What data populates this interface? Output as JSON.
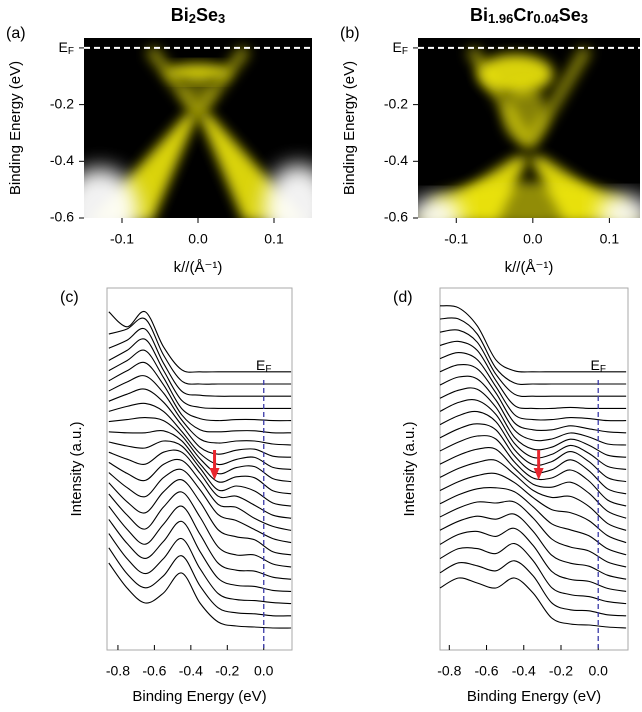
{
  "chart_data": [
    {
      "type": "heatmap",
      "panel": "(a)",
      "title": "Bi2Se3",
      "xlabel": "k//(Å⁻¹)",
      "ylabel": "Binding Energy (eV)",
      "xlim": [
        -0.15,
        0.15
      ],
      "xticks": [
        -0.1,
        {
          "value": 0,
          "label": "0.0"
        },
        0.1
      ],
      "ylim": [
        -0.6,
        0.035
      ],
      "yticks": [
        {
          "value": 0,
          "label": "EF"
        },
        -0.2,
        -0.4,
        -0.6
      ],
      "colors": [
        "#000000",
        "#f2ea10",
        "#ffffff"
      ]
    },
    {
      "type": "heatmap",
      "panel": "(b)",
      "title": "Bi1.96Cr0.04Se3",
      "xlabel": "k//(Å⁻¹)",
      "ylabel": "Binding Energy (eV)",
      "xlim": [
        -0.15,
        0.14
      ],
      "xticks": [
        -0.1,
        {
          "value": 0,
          "label": "0.0"
        },
        0.1
      ],
      "ylim": [
        -0.6,
        0.035
      ],
      "yticks": [
        {
          "value": 0,
          "label": "EF"
        },
        -0.2,
        -0.4,
        -0.6
      ],
      "colors": [
        "#000000",
        "#f2ea10",
        "#ffffff"
      ]
    },
    {
      "type": "waterfall",
      "panel": "(c)",
      "xlabel": "Binding Energy (eV)",
      "ylabel": "Intensity (a.u.)",
      "xlim": [
        -0.86,
        0.155
      ],
      "xticks": [
        -0.8,
        -0.6,
        -0.4,
        -0.2,
        {
          "value": 0,
          "label": "0.0"
        }
      ],
      "annotations": [
        {
          "label": "EF",
          "x": 0
        }
      ],
      "arrow": {
        "x": -0.27,
        "color": "#e8262e"
      },
      "color": "#000000",
      "x": [
        -0.85,
        -0.75,
        -0.65,
        -0.55,
        -0.45,
        -0.35,
        -0.25,
        -0.15,
        -0.05,
        0.05,
        0.15
      ],
      "series": [
        {
          "values": [
            6.5,
            4.0,
            2.5,
            3.5,
            5.5,
            2.5,
            0.6,
            0.2,
            0.1,
            0,
            0
          ]
        },
        {
          "values": [
            6.8,
            4.2,
            2.8,
            4.0,
            6.0,
            3.0,
            0.8,
            0.3,
            0.2,
            0,
            0
          ]
        },
        {
          "values": [
            7.0,
            4.5,
            3.0,
            4.5,
            6.5,
            3.5,
            1.0,
            0.4,
            0.3,
            0.1,
            0
          ]
        },
        {
          "values": [
            7.2,
            4.8,
            3.3,
            5.0,
            7.0,
            4.0,
            1.3,
            0.6,
            0.5,
            0.1,
            0
          ]
        },
        {
          "values": [
            7.3,
            5.0,
            3.5,
            5.5,
            7.3,
            4.5,
            1.6,
            0.9,
            0.8,
            0.2,
            0
          ]
        },
        {
          "values": [
            7.3,
            5.2,
            3.8,
            6.0,
            7.5,
            5.0,
            2.0,
            1.2,
            1.2,
            0.3,
            0
          ]
        },
        {
          "values": [
            7.2,
            5.3,
            4.2,
            6.3,
            7.5,
            5.3,
            2.5,
            1.8,
            1.5,
            0.3,
            0
          ]
        },
        {
          "values": [
            7.0,
            5.5,
            4.6,
            6.5,
            7.3,
            5.3,
            2.8,
            2.2,
            1.3,
            0.4,
            0
          ]
        },
        {
          "values": [
            6.8,
            5.7,
            5.0,
            6.6,
            7.0,
            5.0,
            2.6,
            2.3,
            1.2,
            0.4,
            0
          ]
        },
        {
          "values": [
            6.6,
            5.9,
            5.4,
            6.6,
            6.6,
            4.5,
            2.2,
            2.2,
            1.3,
            0.3,
            0
          ]
        },
        {
          "values": [
            6.4,
            6.0,
            5.8,
            6.5,
            6.0,
            3.8,
            1.6,
            2.0,
            1.5,
            0.3,
            0
          ]
        },
        {
          "values": [
            6.2,
            6.1,
            6.1,
            6.3,
            5.3,
            3.0,
            1.2,
            1.7,
            1.6,
            0.3,
            0
          ]
        },
        {
          "values": [
            6.0,
            6.2,
            6.4,
            6.1,
            4.6,
            2.3,
            0.8,
            1.4,
            1.5,
            0.3,
            0
          ]
        },
        {
          "values": [
            5.8,
            6.3,
            6.6,
            5.8,
            3.8,
            1.6,
            0.5,
            1.0,
            1.2,
            0.2,
            0
          ]
        },
        {
          "values": [
            5.6,
            6.3,
            6.8,
            5.5,
            3.2,
            1.0,
            0.3,
            0.7,
            0.8,
            0.1,
            0
          ]
        },
        {
          "values": [
            5.4,
            6.3,
            6.9,
            5.2,
            2.5,
            0.6,
            0.2,
            0.4,
            0.4,
            0.1,
            0
          ]
        },
        {
          "values": [
            5.2,
            6.2,
            7.0,
            4.8,
            1.8,
            0.3,
            0.1,
            0.2,
            0.2,
            0,
            0
          ]
        },
        {
          "values": [
            5.0,
            6.0,
            7.0,
            4.3,
            1.2,
            0.2,
            0,
            0.1,
            0.1,
            0,
            0
          ]
        },
        {
          "values": [
            4.8,
            5.8,
            6.9,
            3.8,
            0.8,
            0.1,
            0,
            0,
            0,
            0,
            0
          ]
        },
        {
          "values": [
            4.8,
            5.6,
            6.7,
            3.3,
            0.5,
            0.1,
            0,
            0,
            0,
            0,
            0
          ]
        },
        {
          "values": [
            5.0,
            5.5,
            6.5,
            2.9,
            0.3,
            0,
            0,
            0,
            0,
            0,
            0
          ]
        },
        {
          "values": [
            6.0,
            4.5,
            6.0,
            2.5,
            0.2,
            0,
            0,
            0,
            0,
            0,
            0
          ]
        }
      ]
    },
    {
      "type": "waterfall",
      "panel": "(d)",
      "xlabel": "Binding Energy (eV)",
      "ylabel": "Intensity (a.u.)",
      "xlim": [
        -0.85,
        0.16
      ],
      "xticks": [
        -0.8,
        -0.6,
        -0.4,
        -0.2,
        {
          "value": 0,
          "label": "0.0"
        }
      ],
      "annotations": [
        {
          "label": "EF",
          "x": 0
        }
      ],
      "arrow": {
        "x": -0.32,
        "color": "#e8262e"
      },
      "color": "#000000",
      "x": [
        -0.85,
        -0.75,
        -0.65,
        -0.55,
        -0.45,
        -0.35,
        -0.25,
        -0.15,
        -0.05,
        0.05,
        0.15
      ],
      "series": [
        {
          "values": [
            4.0,
            5.0,
            4.5,
            4.0,
            5.0,
            3.5,
            1.0,
            0.4,
            0.3,
            0.1,
            0
          ]
        },
        {
          "values": [
            4.3,
            5.3,
            5.0,
            4.5,
            5.5,
            4.0,
            1.3,
            0.6,
            0.5,
            0.1,
            0
          ]
        },
        {
          "values": [
            4.5,
            5.5,
            5.5,
            5.0,
            6.0,
            4.3,
            1.6,
            0.9,
            0.7,
            0.2,
            0
          ]
        },
        {
          "values": [
            4.7,
            5.7,
            6.0,
            5.5,
            6.3,
            4.6,
            2.0,
            1.2,
            1.0,
            0.3,
            0
          ]
        },
        {
          "values": [
            4.9,
            5.8,
            6.3,
            6.0,
            6.5,
            4.8,
            2.4,
            1.6,
            1.3,
            0.4,
            0
          ]
        },
        {
          "values": [
            5.0,
            5.9,
            6.5,
            6.4,
            6.5,
            4.9,
            2.8,
            2.0,
            1.6,
            0.5,
            0
          ]
        },
        {
          "values": [
            5.1,
            6.0,
            6.6,
            6.7,
            6.3,
            4.8,
            3.1,
            2.5,
            1.9,
            0.6,
            0
          ]
        },
        {
          "values": [
            5.2,
            6.1,
            6.7,
            6.9,
            6.0,
            4.5,
            3.3,
            3.0,
            2.2,
            0.7,
            0
          ]
        },
        {
          "values": [
            5.3,
            6.2,
            6.8,
            7.0,
            5.6,
            4.0,
            3.3,
            3.4,
            2.4,
            0.7,
            0
          ]
        },
        {
          "values": [
            5.4,
            6.3,
            6.9,
            6.9,
            5.0,
            3.4,
            3.1,
            3.6,
            2.5,
            0.7,
            0
          ]
        },
        {
          "values": [
            5.5,
            6.4,
            7.0,
            6.7,
            4.4,
            2.8,
            2.8,
            3.6,
            2.5,
            0.6,
            0
          ]
        },
        {
          "values": [
            5.6,
            6.5,
            7.0,
            6.4,
            3.8,
            2.2,
            2.4,
            3.4,
            2.3,
            0.5,
            0
          ]
        },
        {
          "values": [
            5.7,
            6.6,
            7.0,
            6.0,
            3.2,
            1.7,
            2.0,
            3.0,
            2.0,
            0.4,
            0
          ]
        },
        {
          "values": [
            5.8,
            6.7,
            6.9,
            5.5,
            2.6,
            1.2,
            1.5,
            2.4,
            1.6,
            0.3,
            0
          ]
        },
        {
          "values": [
            5.9,
            6.7,
            6.8,
            5.0,
            2.0,
            0.8,
            1.0,
            1.8,
            1.2,
            0.2,
            0
          ]
        },
        {
          "values": [
            6.0,
            6.8,
            6.6,
            4.5,
            1.5,
            0.5,
            0.6,
            1.2,
            0.8,
            0.1,
            0
          ]
        },
        {
          "values": [
            6.1,
            6.8,
            6.4,
            4.0,
            1.0,
            0.3,
            0.3,
            0.7,
            0.4,
            0.1,
            0
          ]
        },
        {
          "values": [
            6.2,
            6.8,
            6.1,
            3.4,
            0.6,
            0.1,
            0.1,
            0.3,
            0.2,
            0,
            0
          ]
        },
        {
          "values": [
            6.3,
            6.7,
            5.8,
            2.8,
            0.3,
            0,
            0,
            0.1,
            0,
            0,
            0
          ]
        },
        {
          "values": [
            6.4,
            6.6,
            5.4,
            2.2,
            0.2,
            0,
            0,
            0,
            0,
            0,
            0
          ]
        },
        {
          "values": [
            6.5,
            6.5,
            5.0,
            1.6,
            0.1,
            0,
            0,
            0,
            0,
            0,
            0
          ]
        },
        {
          "values": [
            6.6,
            6.4,
            4.6,
            1.2,
            0.1,
            0,
            0,
            0,
            0,
            0,
            0
          ]
        }
      ]
    }
  ]
}
